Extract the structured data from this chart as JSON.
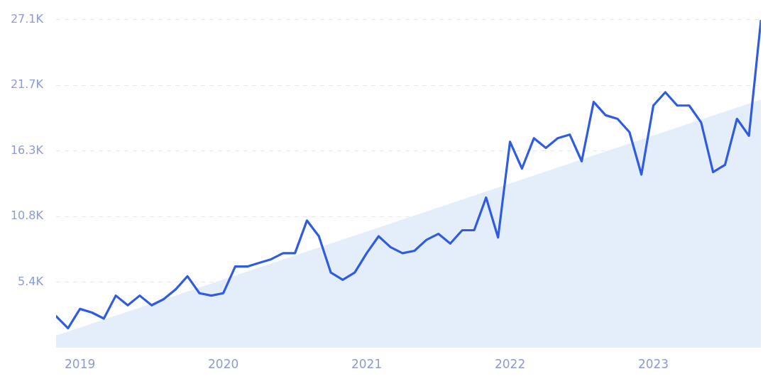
{
  "chart_data": {
    "type": "line",
    "x": [
      "2018-11",
      "2018-12",
      "2019-01",
      "2019-02",
      "2019-03",
      "2019-04",
      "2019-05",
      "2019-06",
      "2019-07",
      "2019-08",
      "2019-09",
      "2019-10",
      "2019-11",
      "2019-12",
      "2020-01",
      "2020-02",
      "2020-03",
      "2020-04",
      "2020-05",
      "2020-06",
      "2020-07",
      "2020-08",
      "2020-09",
      "2020-10",
      "2020-11",
      "2020-12",
      "2021-01",
      "2021-02",
      "2021-03",
      "2021-04",
      "2021-05",
      "2021-06",
      "2021-07",
      "2021-08",
      "2021-09",
      "2021-10",
      "2021-11",
      "2021-12",
      "2022-01",
      "2022-02",
      "2022-03",
      "2022-04",
      "2022-05",
      "2022-06",
      "2022-07",
      "2022-08",
      "2022-09",
      "2022-10",
      "2022-11",
      "2022-12",
      "2023-01",
      "2023-02",
      "2023-03",
      "2023-04",
      "2023-05",
      "2023-06",
      "2023-07",
      "2023-08",
      "2023-09",
      "2023-10"
    ],
    "series": [
      {
        "type": "area",
        "color": "#e4eefb",
        "x": [
          "2018-11",
          "2023-10"
        ],
        "values": [
          1000,
          20500
        ]
      },
      {
        "type": "line",
        "color": "#2f5ce0",
        "values": [
          2600,
          1600,
          3200,
          2900,
          2400,
          4300,
          3500,
          4300,
          3500,
          4000,
          4800,
          5900,
          4500,
          4300,
          4500,
          6700,
          6700,
          7000,
          7300,
          7800,
          7800,
          10500,
          9200,
          6200,
          5600,
          6200,
          7800,
          9200,
          8300,
          7800,
          8000,
          8900,
          9400,
          8600,
          9700,
          9700,
          12400,
          9100,
          17000,
          14800,
          17300,
          16500,
          17300,
          17600,
          15400,
          20300,
          19200,
          18900,
          17800,
          14300,
          20000,
          21100,
          20000,
          20000,
          18600,
          14500,
          15100,
          18900,
          17500,
          27000
        ]
      }
    ],
    "xlim": [
      "2018-11",
      "2023-10"
    ],
    "xticks": [
      "2019",
      "2020",
      "2021",
      "2022",
      "2023"
    ],
    "ylim": [
      0,
      27100
    ],
    "yticks": [
      {
        "value": 5420,
        "label": "5.4K"
      },
      {
        "value": 10840,
        "label": "10.8K"
      },
      {
        "value": 16260,
        "label": "16.3K"
      },
      {
        "value": 21680,
        "label": "21.7K"
      },
      {
        "value": 27100,
        "label": "27.1K"
      }
    ],
    "grid": "y",
    "legend": false,
    "marker": "none",
    "line_style": "solid"
  }
}
